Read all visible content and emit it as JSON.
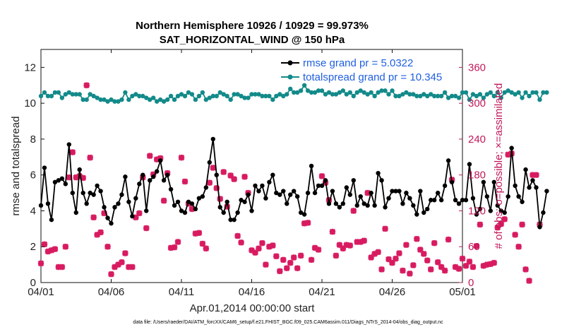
{
  "chart_data": {
    "type": "line",
    "title": "Northern Hemisphere 10926 / 10929 = 99.973%",
    "subtitle": "SAT_HORIZONTAL_WIND @ 150 hPa",
    "xlabel": "Apr.01,2014 00:00:00 start",
    "ylabel": "rmse and totalspread",
    "ylabel_right": "# of obs: o=possible; ×=assimilated",
    "footer": "data file: /Users/raeder/DAI/ATM_forcXX/CAM6_setup/f.e21.FHIST_BGC.f09_025.CAM6assim.011/Diags_NTrS_2014-04/obs_diag_output.nc",
    "xlim": [
      0,
      30
    ],
    "ylim": [
      0,
      13
    ],
    "ylim_right": [
      0,
      390
    ],
    "x_ticks": [
      0,
      5,
      10,
      15,
      20,
      25,
      30
    ],
    "x_tick_labels": [
      "04/01",
      "04/06",
      "04/11",
      "04/16",
      "04/21",
      "04/26",
      "05/01"
    ],
    "y_ticks": [
      0,
      2,
      4,
      6,
      8,
      10,
      12
    ],
    "y_ticks_right": [
      0,
      60,
      120,
      180,
      240,
      300,
      360
    ],
    "grid": false,
    "legend_position": "top-right",
    "colors": {
      "rmse": "#000000",
      "totalspread": "#138a8a",
      "obs": "#d81b60",
      "legend_text": "#1f5fe0",
      "right_axis": "#c2185b"
    },
    "series": [
      {
        "name": "rmse grand pr = 5.0322",
        "axis": "left",
        "x_step": 0.25,
        "values": [
          4.3,
          6.4,
          4.4,
          3.5,
          5.6,
          5.7,
          5.8,
          5.5,
          7.7,
          5.0,
          3.9,
          6.3,
          5.0,
          4.4,
          5.0,
          4.9,
          5.4,
          5.1,
          4.2,
          3.6,
          3.3,
          4.2,
          4.4,
          4.9,
          5.9,
          4.5,
          3.7,
          4.7,
          5.5,
          6.0,
          4.0,
          5.7,
          5.9,
          6.2,
          6.8,
          5.7,
          6.0,
          5.2,
          4.3,
          4.5,
          4.0,
          3.9,
          4.5,
          4.4,
          4.1,
          4.7,
          4.8,
          5.3,
          6.7,
          8.0,
          6.0,
          4.2,
          3.9,
          4.5,
          3.5,
          3.5,
          3.9,
          4.6,
          4.5,
          4.9,
          4.0,
          5.4,
          5.1,
          5.4,
          4.7,
          5.6,
          6.0,
          5.0,
          4.9,
          5.1,
          4.4,
          4.9,
          5.1,
          4.8,
          3.9,
          3.8,
          5.0,
          6.5,
          5.0,
          5.4,
          5.4,
          5.7,
          4.4,
          5.1,
          4.4,
          4.2,
          4.4,
          5.3,
          4.9,
          5.7,
          4.3,
          4.8,
          4.4,
          4.3,
          5.0,
          4.3,
          6.1,
          5.7,
          4.2,
          4.7,
          5.1,
          5.1,
          5.1,
          4.4,
          5.0,
          4.7,
          4.3,
          3.8,
          5.1,
          3.9,
          4.1,
          4.6,
          4.6,
          5.0,
          4.6,
          5.4,
          6.8,
          5.6,
          4.6,
          4.4,
          4.6,
          4.6,
          6.6,
          4.7,
          3.8,
          4.1,
          5.6,
          4.8,
          4.0,
          5.6,
          4.3,
          4.0,
          3.9,
          4.8,
          7.5,
          5.4,
          4.8,
          4.5,
          6.3,
          5.3,
          5.7,
          5.3,
          3.1,
          3.9,
          5.1
        ]
      },
      {
        "name": "totalspread grand pr = 10.345",
        "axis": "left",
        "x_step": 0.25,
        "values": [
          10.4,
          10.6,
          10.4,
          10.4,
          10.6,
          10.6,
          10.3,
          10.5,
          10.6,
          10.5,
          10.5,
          10.5,
          10.2,
          10.2,
          10.5,
          10.4,
          10.3,
          10.2,
          10.2,
          10.1,
          10.2,
          10.1,
          10.1,
          10.2,
          10.6,
          10.2,
          10.4,
          10.5,
          10.4,
          10.4,
          10.3,
          10.2,
          10.3,
          10.1,
          10.2,
          10.1,
          10.2,
          10.4,
          10.2,
          10.4,
          10.5,
          10.4,
          10.6,
          10.5,
          10.2,
          10.4,
          10.6,
          10.2,
          10.3,
          10.4,
          10.4,
          10.6,
          10.5,
          10.4,
          10.2,
          10.5,
          10.5,
          10.4,
          10.3,
          10.3,
          10.5,
          10.5,
          10.5,
          10.4,
          10.4,
          10.4,
          10.2,
          10.4,
          10.5,
          10.4,
          10.5,
          10.8,
          10.6,
          10.6,
          10.7,
          11.0,
          10.7,
          10.6,
          10.6,
          10.7,
          10.7,
          10.5,
          10.6,
          10.5,
          10.5,
          10.6,
          10.7,
          10.5,
          10.6,
          10.4,
          10.6,
          10.7,
          10.6,
          10.5,
          10.6,
          10.4,
          10.6,
          10.7,
          10.7,
          10.5,
          10.7,
          10.4,
          10.4,
          10.5,
          10.6,
          10.5,
          10.5,
          10.4,
          10.4,
          10.5,
          10.4,
          10.5,
          10.4,
          10.4,
          10.4,
          10.6,
          10.3,
          10.4,
          10.4,
          10.3,
          10.6,
          10.6,
          10.2,
          10.5,
          10.4,
          10.5,
          10.3,
          10.5,
          10.6,
          10.4,
          10.6,
          10.3,
          10.6,
          10.7,
          10.6,
          10.5,
          10.6,
          10.3,
          10.6,
          10.4,
          10.6,
          10.6,
          10.2,
          10.6,
          10.6
        ]
      },
      {
        "name": "obs possible",
        "axis": "right",
        "marker": "o",
        "x_step": 0.25,
        "values": [
          32,
          64,
          52,
          54,
          56,
          26,
          26,
          60,
          176,
          218,
          176,
          178,
          175,
          330,
          209,
          109,
          80,
          84,
          116,
          60,
          14,
          26,
          30,
          34,
          49,
          26,
          26,
          109,
          116,
          176,
          91,
          212,
          181,
          206,
          208,
          137,
          183,
          58,
          59,
          68,
          209,
          169,
          132,
          123,
          82,
          83,
          65,
          57,
          167,
          192,
          158,
          140,
          185,
          127,
          179,
          173,
          78,
          67,
          177,
          150,
          54,
          50,
          57,
          66,
          30,
          60,
          62,
          44,
          19,
          38,
          24,
          33,
          42,
          24,
          45,
          99,
          100,
          38,
          58,
          55,
          178,
          167,
          138,
          85,
          45,
          63,
          57,
          63,
          62,
          120,
          68,
          68,
          70,
          150,
          42,
          48,
          51,
          22,
          90,
          39,
          33,
          40,
          49,
          20,
          63,
          15,
          29,
          73,
          55,
          48,
          37,
          22,
          66,
          34,
          26,
          20,
          72,
          172,
          26,
          23,
          40,
          28,
          35,
          26,
          61,
          97,
          28,
          30,
          31,
          33,
          92,
          98,
          106,
          214,
          216,
          80,
          60,
          97,
          22,
          3,
          180,
          180,
          97
        ]
      }
    ]
  }
}
